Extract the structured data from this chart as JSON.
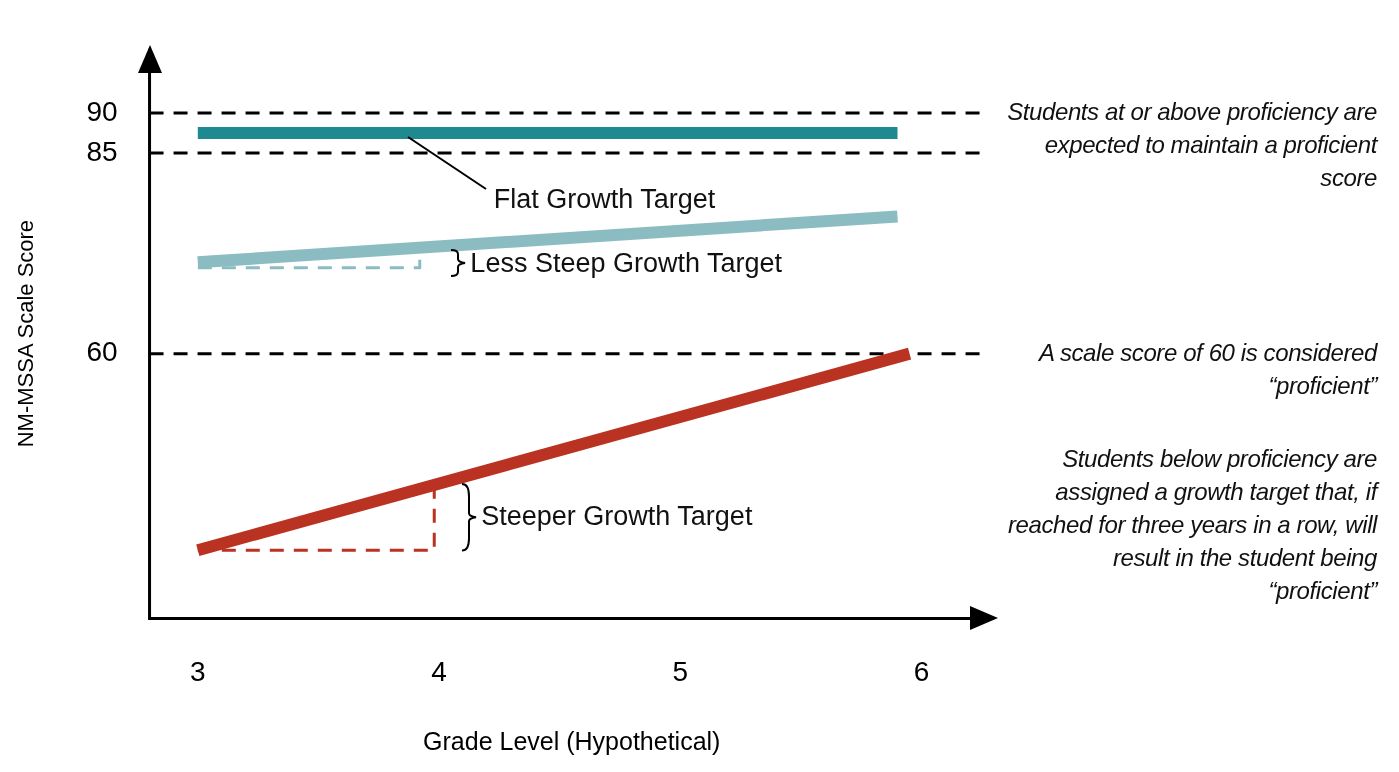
{
  "chart_data": {
    "type": "line",
    "xlabel": "Grade Level (Hypothetical)",
    "ylabel": "NM-MSSA Scale Score",
    "xlim": [
      2.8,
      6.3
    ],
    "xticks": [
      3,
      4,
      5,
      6
    ],
    "ylim": [
      27,
      98
    ],
    "yticks": [
      60,
      85,
      90
    ],
    "grid": false,
    "legend": false,
    "marker": "none",
    "series": [
      {
        "color": "#1e8a8f",
        "x": [
          3,
          5.9
        ],
        "values": [
          87.5,
          87.5
        ],
        "line_style": "solid"
      },
      {
        "color": "#8bbcc2",
        "x": [
          3,
          5.9
        ],
        "values": [
          71.4,
          77.1
        ],
        "line_style": "solid"
      },
      {
        "color": "#b93222",
        "x": [
          3,
          5.95
        ],
        "values": [
          35.5,
          60
        ],
        "line_style": "solid"
      },
      {
        "color": "#8bbcc2",
        "x": [
          3,
          3.92,
          3.92
        ],
        "values": [
          70.7,
          70.7,
          72
        ],
        "line_style": "dashed"
      },
      {
        "color": "#b93222",
        "x": [
          3,
          3.98,
          3.98
        ],
        "values": [
          35.5,
          35.5,
          43.8
        ],
        "line_style": "dashed"
      }
    ],
    "ref_lines": [
      {
        "axis": "y",
        "value": 90,
        "color": "#000000",
        "line_style": "dashed",
        "label": "Students at or above proficiency are expected to maintain a proficient score"
      },
      {
        "axis": "y",
        "value": 85,
        "color": "#000000",
        "line_style": "dashed"
      },
      {
        "axis": "y",
        "value": 60,
        "color": "#000000",
        "line_style": "dashed",
        "label": "A scale score of 60 is considered “proficient”"
      }
    ],
    "annotations": [
      {
        "text": "Flat Growth Target",
        "x": 3.87,
        "y": 87.5
      },
      {
        "text": "Less Steep Growth Target",
        "x": 4.08,
        "y": 71.3
      },
      "Steeper Growth Target",
      "Students below proficiency are assigned a growth target that, if reached for three years in a row, will result in the student being “proficient”"
    ]
  }
}
